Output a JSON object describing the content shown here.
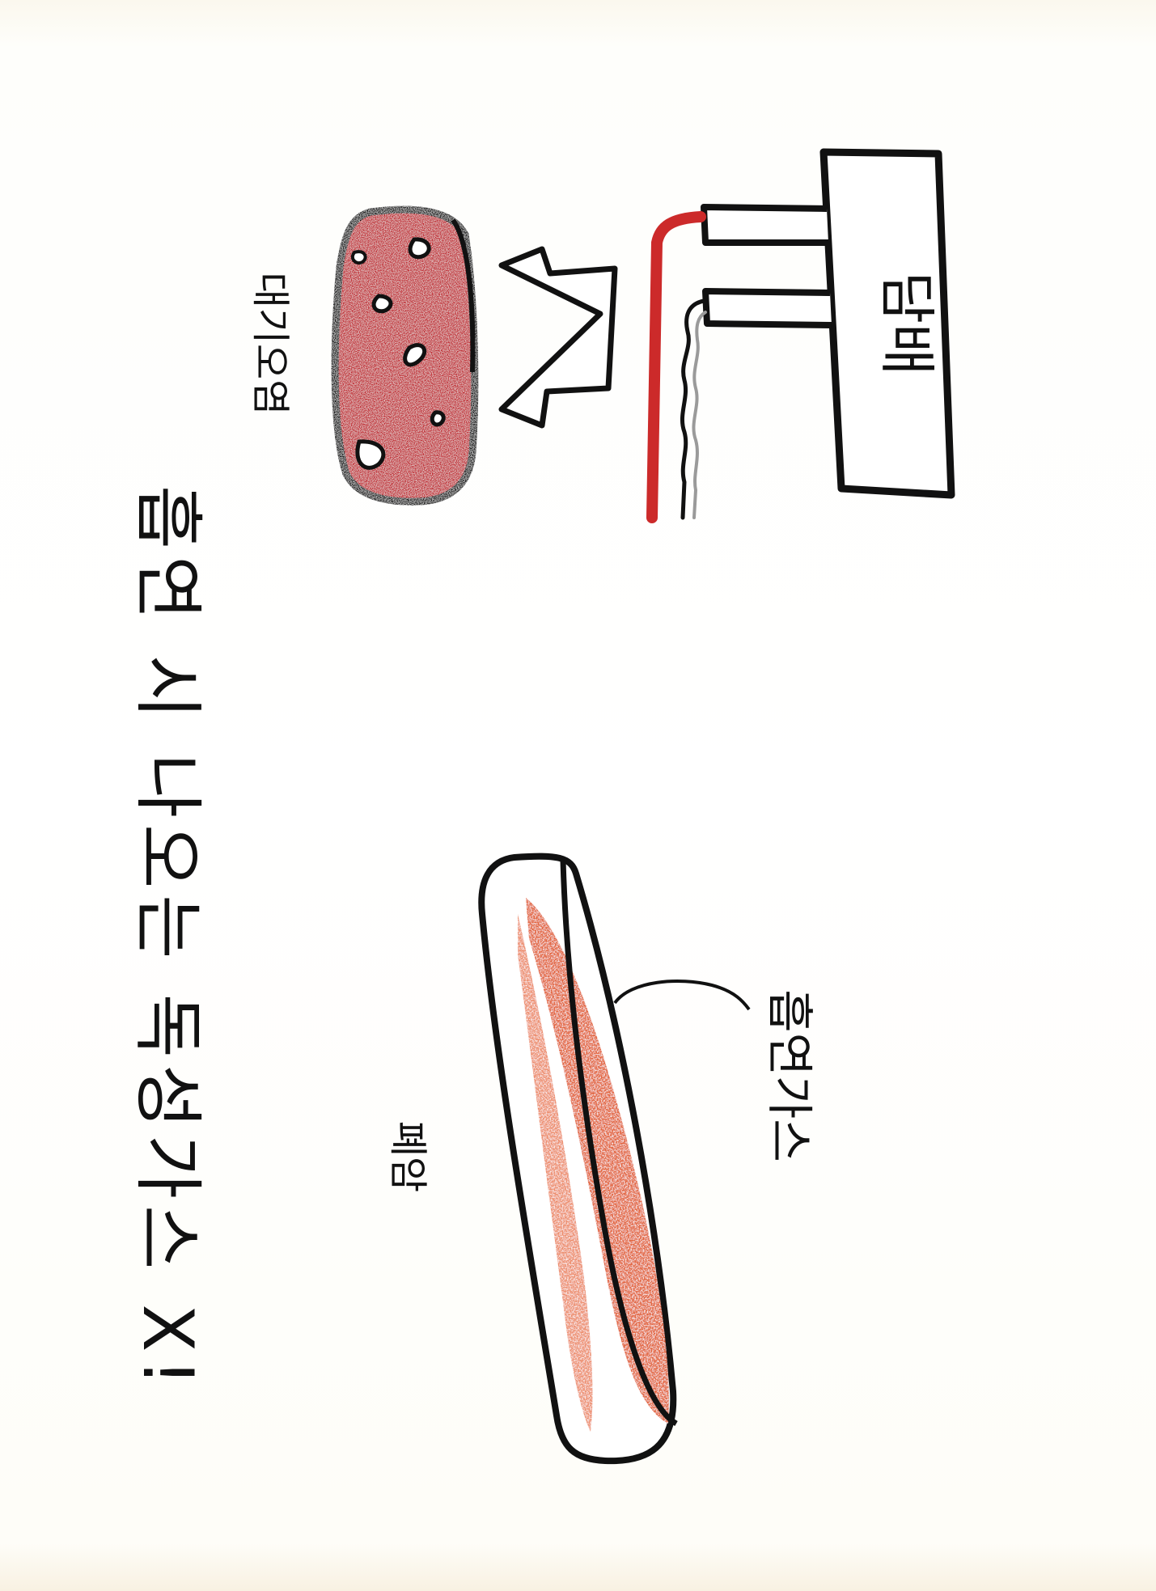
{
  "title": "흡연 시 나오는 독성가스 X!",
  "labels": {
    "cigarette_box": "담배",
    "lungs": "폐",
    "lung_label": "대기오염",
    "lower_label": "폐암",
    "lower_arrow_label": "흡연가스"
  },
  "colors": {
    "outline": "#111111",
    "lung_red": "#c0252e",
    "lung_red_light": "#d63a40",
    "smoke_red": "#cc2a2a",
    "tissue_orange": "#e0572c",
    "paper": "#ffffff"
  },
  "icons": {
    "cigarette": "cigarette-icon",
    "lung": "lung-icon",
    "arrow": "arrow-icon",
    "tissue": "lung-tissue-icon"
  }
}
